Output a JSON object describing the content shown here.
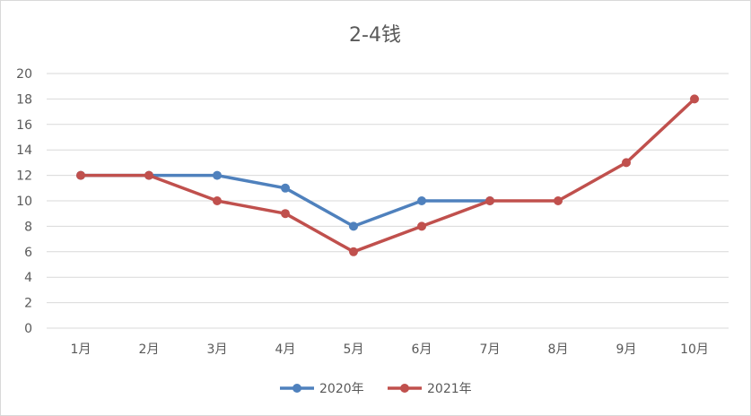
{
  "chart_data": {
    "type": "line",
    "title": "2-4钱",
    "categories": [
      "1月",
      "2月",
      "3月",
      "4月",
      "5月",
      "6月",
      "7月",
      "8月",
      "9月",
      "10月"
    ],
    "yticks": [
      "0",
      "2",
      "4",
      "6",
      "8",
      "10",
      "12",
      "14",
      "16",
      "18",
      "20"
    ],
    "ylim": [
      0,
      20
    ],
    "grid": true,
    "legend_position": "bottom",
    "series": [
      {
        "name": "2020年",
        "color": "#4f81bd",
        "values": [
          12,
          12,
          12,
          11,
          8,
          10,
          10,
          null,
          null,
          null
        ]
      },
      {
        "name": "2021年",
        "color": "#c0504d",
        "values": [
          12,
          12,
          10,
          9,
          6,
          8,
          10,
          10,
          13,
          18
        ]
      }
    ]
  }
}
